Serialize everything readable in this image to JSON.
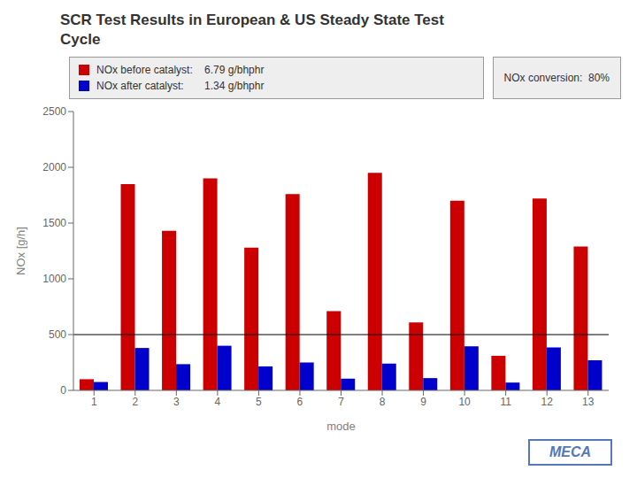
{
  "chart_data": {
    "type": "bar",
    "title": "SCR Test Results in European & US Steady State Test\nCycle",
    "categories": [
      "1",
      "2",
      "3",
      "4",
      "5",
      "6",
      "7",
      "8",
      "9",
      "10",
      "11",
      "12",
      "13"
    ],
    "series": [
      {
        "name": "NOx before catalyst:    6.79 g/bhphr",
        "color": "#CC0000",
        "values": [
          100,
          1850,
          1430,
          1900,
          1280,
          1760,
          710,
          1950,
          610,
          1700,
          310,
          1720,
          1290
        ]
      },
      {
        "name": "NOx after catalyst:       1.34 g/bhphr",
        "color": "#0000CC",
        "values": [
          75,
          380,
          235,
          400,
          215,
          250,
          105,
          240,
          110,
          395,
          70,
          385,
          270
        ]
      }
    ],
    "xlabel": "mode",
    "ylabel": "NOx [g/h]",
    "ylim": [
      0,
      2500
    ],
    "yticks": [
      0,
      500,
      1000,
      1500,
      2000,
      2500
    ],
    "hline": 500,
    "grid": false,
    "annotations": [
      "NOx conversion:  80%"
    ],
    "logo": "MECA"
  }
}
